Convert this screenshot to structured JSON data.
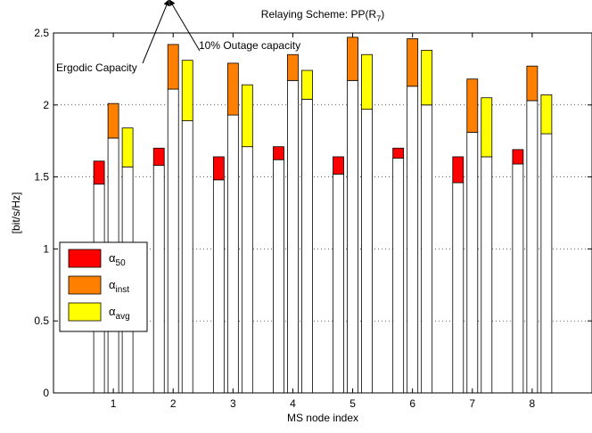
{
  "chart_data": {
    "type": "bar",
    "title_main": "Relaying Scheme: PP(R",
    "title_sub": "7",
    "title_close": ")",
    "xlabel": "MS node index",
    "ylabel": "[bit/s/Hz]",
    "categories": [
      "1",
      "2",
      "3",
      "4",
      "5",
      "6",
      "7",
      "8"
    ],
    "xlim": [
      0,
      9
    ],
    "ylim": [
      0,
      2.5
    ],
    "yticks": [
      "0",
      "0.5",
      "1",
      "1.5",
      "2",
      "2.5"
    ],
    "grid": true,
    "legend_position": "left-middle",
    "bar_style": "white lower bar = 10% outage capacity, colored cap on top up to ergodic capacity",
    "series": [
      {
        "name_base": "α",
        "name_sub": "50",
        "color": "#ff0000",
        "outage": [
          1.45,
          1.58,
          1.48,
          1.62,
          1.52,
          1.63,
          1.46,
          1.59
        ],
        "ergodic": [
          1.61,
          1.7,
          1.64,
          1.71,
          1.64,
          1.7,
          1.64,
          1.69
        ]
      },
      {
        "name_base": "α",
        "name_sub": "inst",
        "color": "#ff8000",
        "outage": [
          1.77,
          2.11,
          1.93,
          2.17,
          2.17,
          2.13,
          1.81,
          2.03
        ],
        "ergodic": [
          2.01,
          2.42,
          2.29,
          2.35,
          2.47,
          2.46,
          2.18,
          2.27
        ]
      },
      {
        "name_base": "α",
        "name_sub": "avg",
        "color": "#ffff00",
        "outage": [
          1.57,
          1.89,
          1.71,
          2.04,
          1.97,
          2.0,
          1.64,
          1.8
        ],
        "ergodic": [
          1.84,
          2.31,
          2.14,
          2.24,
          2.35,
          2.38,
          2.05,
          2.07
        ]
      }
    ],
    "annotations": [
      {
        "text": "Ergodic Capacity",
        "category": "2",
        "series": 1,
        "points_to": "ergodic"
      },
      {
        "text": "10% Outage capacity",
        "category": "2",
        "series": 1,
        "points_to": "outage"
      }
    ]
  }
}
